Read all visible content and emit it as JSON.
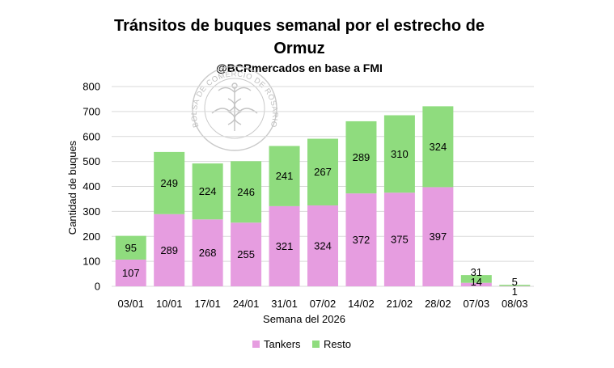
{
  "chart_data": {
    "type": "bar",
    "stacked": true,
    "title_line1": "Tránsitos de buques semanal por el estrecho de",
    "title_line2": "Ormuz",
    "subtitle": "@BCRmercados en base a FMI",
    "xlabel": "Semana del 2026",
    "ylabel": "Cantidad de buques",
    "ylim": [
      0,
      800
    ],
    "yticks": [
      0,
      100,
      200,
      300,
      400,
      500,
      600,
      700,
      800
    ],
    "categories": [
      "03/01",
      "10/01",
      "17/01",
      "24/01",
      "31/01",
      "07/02",
      "14/02",
      "21/02",
      "28/02",
      "07/03",
      "08/03"
    ],
    "series": [
      {
        "name": "Tankers",
        "color": "#e69de0",
        "values": [
          107,
          289,
          268,
          255,
          321,
          324,
          372,
          375,
          397,
          14,
          1
        ]
      },
      {
        "name": "Resto",
        "color": "#8fdc7e",
        "values": [
          95,
          249,
          224,
          246,
          241,
          267,
          289,
          310,
          324,
          31,
          5
        ]
      }
    ],
    "grid": true,
    "legend_position": "bottom"
  },
  "watermark": {
    "text": "BOLSA DE COMERCIO DE ROSARIO",
    "color": "#bdbdbd"
  }
}
